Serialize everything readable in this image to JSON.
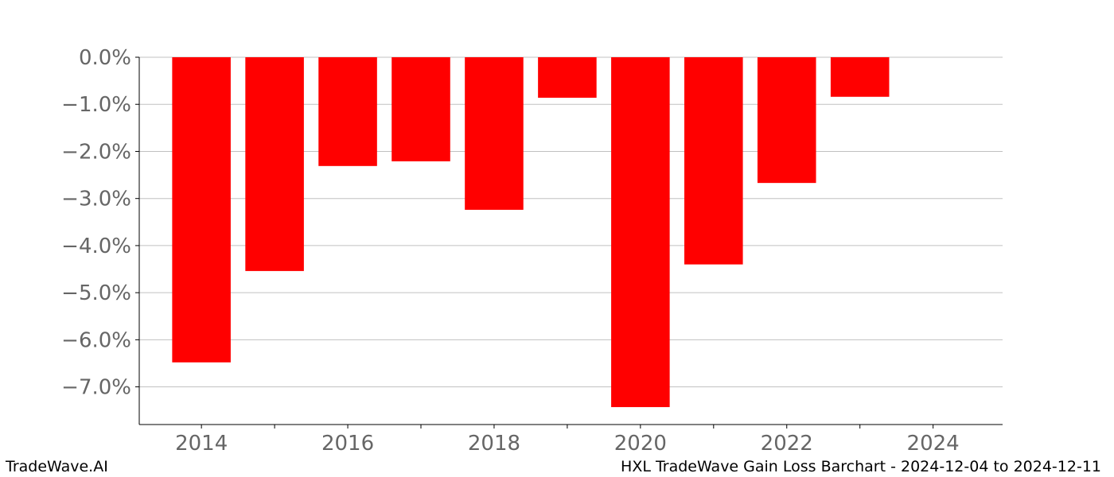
{
  "footer": {
    "brand": "TradeWave.AI",
    "caption": "HXL TradeWave Gain Loss Barchart - 2024-12-04 to 2024-12-11"
  },
  "colors": {
    "bar": "#ff0000",
    "grid": "#c0c0c0",
    "axis": "#000000",
    "tick_label": "#666666"
  },
  "chart_data": {
    "type": "bar",
    "x": [
      2014,
      2015,
      2016,
      2017,
      2018,
      2019,
      2020,
      2021,
      2022,
      2023
    ],
    "values": [
      -6.48,
      -4.54,
      -2.31,
      -2.21,
      -3.24,
      -0.86,
      -7.43,
      -4.4,
      -2.67,
      -0.84
    ],
    "xlim": [
      2013.15,
      2024.95
    ],
    "ylim": [
      -7.8,
      0.0
    ],
    "bar_width": 0.8,
    "x_ticks": [
      2014,
      2015,
      2016,
      2017,
      2018,
      2019,
      2020,
      2021,
      2022,
      2023,
      2024
    ],
    "x_tick_labels": [
      "2014",
      "",
      "2016",
      "",
      "2018",
      "",
      "2020",
      "",
      "2022",
      "",
      "2024"
    ],
    "y_ticks": [
      0,
      -1,
      -2,
      -3,
      -4,
      -5,
      -6,
      -7
    ],
    "y_tick_labels": [
      "0.0%",
      "−1.0%",
      "−2.0%",
      "−3.0%",
      "−4.0%",
      "−5.0%",
      "−6.0%",
      "−7.0%"
    ],
    "grid": true,
    "title": "",
    "xlabel": "",
    "ylabel": ""
  }
}
